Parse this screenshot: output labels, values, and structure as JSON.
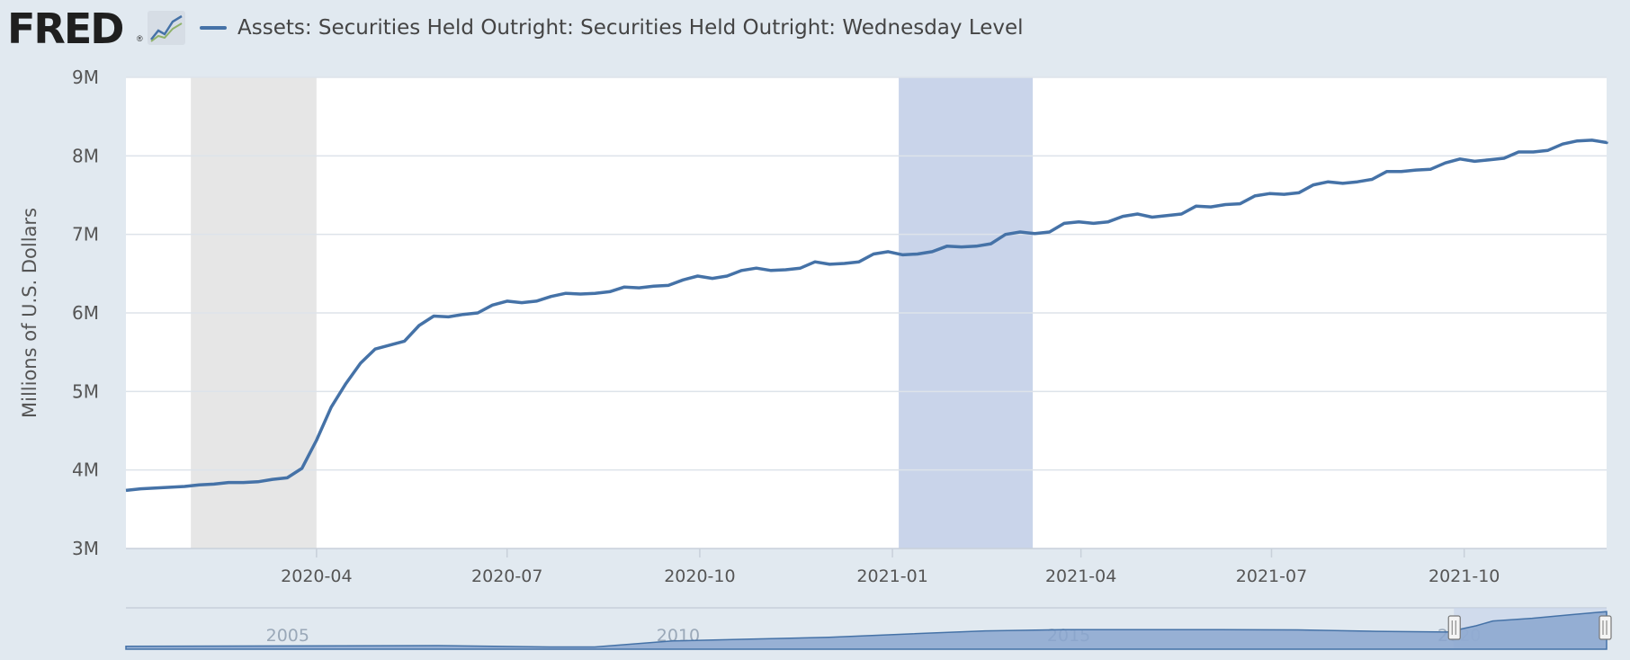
{
  "header": {
    "logo_text": "FRED",
    "logo_reg": "®"
  },
  "colors": {
    "series": "#4572a7",
    "recession_shade": "#e6e6e6",
    "highlight_shade": "#c9d4ea",
    "plot_bg": "#ffffff",
    "page_bg": "#e1e9f0",
    "grid": "#dde3ea",
    "navigator_fill": "#8aa6cf",
    "navigator_window": "#c9d4ea"
  },
  "icons": {
    "logo_graph": "fred-graph-icon",
    "handle": "navigator-handle-icon"
  },
  "chart_data": {
    "type": "line",
    "ylabel": "Millions of U.S. Dollars",
    "ylim": [
      3000000,
      9000000
    ],
    "y_ticks": [
      {
        "value": 3000000,
        "label": "3M"
      },
      {
        "value": 4000000,
        "label": "4M"
      },
      {
        "value": 5000000,
        "label": "5M"
      },
      {
        "value": 6000000,
        "label": "6M"
      },
      {
        "value": 7000000,
        "label": "7M"
      },
      {
        "value": 8000000,
        "label": "8M"
      },
      {
        "value": 9000000,
        "label": "9M"
      }
    ],
    "xlim": [
      "2020-01-01",
      "2021-12-08"
    ],
    "x_ticks": [
      {
        "date": "2020-04-01",
        "label": "2020-04"
      },
      {
        "date": "2020-07-01",
        "label": "2020-07"
      },
      {
        "date": "2020-10-01",
        "label": "2020-10"
      },
      {
        "date": "2021-01-01",
        "label": "2021-01"
      },
      {
        "date": "2021-04-01",
        "label": "2021-04"
      },
      {
        "date": "2021-07-01",
        "label": "2021-07"
      },
      {
        "date": "2021-10-01",
        "label": "2021-10"
      }
    ],
    "shaded_regions": [
      {
        "start": "2020-02-01",
        "end": "2020-04-01",
        "color": "#e6e6e6"
      },
      {
        "start": "2021-01-04",
        "end": "2021-03-09",
        "color": "#c9d4ea"
      }
    ],
    "grid": true,
    "legend_position": "top-left",
    "series": [
      {
        "name": "Assets: Securities Held Outright: Securities Held Outright: Wednesday Level",
        "color": "#4572a7",
        "points": [
          [
            "2020-01-01",
            3740000
          ],
          [
            "2020-01-08",
            3760000
          ],
          [
            "2020-01-15",
            3770000
          ],
          [
            "2020-01-22",
            3780000
          ],
          [
            "2020-01-29",
            3790000
          ],
          [
            "2020-02-05",
            3810000
          ],
          [
            "2020-02-12",
            3820000
          ],
          [
            "2020-02-19",
            3840000
          ],
          [
            "2020-02-26",
            3840000
          ],
          [
            "2020-03-04",
            3850000
          ],
          [
            "2020-03-11",
            3880000
          ],
          [
            "2020-03-18",
            3900000
          ],
          [
            "2020-03-25",
            4020000
          ],
          [
            "2020-04-01",
            4380000
          ],
          [
            "2020-04-08",
            4800000
          ],
          [
            "2020-04-15",
            5100000
          ],
          [
            "2020-04-22",
            5360000
          ],
          [
            "2020-04-29",
            5540000
          ],
          [
            "2020-05-06",
            5590000
          ],
          [
            "2020-05-13",
            5640000
          ],
          [
            "2020-05-20",
            5840000
          ],
          [
            "2020-05-27",
            5960000
          ],
          [
            "2020-06-03",
            5950000
          ],
          [
            "2020-06-10",
            5980000
          ],
          [
            "2020-06-17",
            6000000
          ],
          [
            "2020-06-24",
            6100000
          ],
          [
            "2020-07-01",
            6150000
          ],
          [
            "2020-07-08",
            6130000
          ],
          [
            "2020-07-15",
            6150000
          ],
          [
            "2020-07-22",
            6210000
          ],
          [
            "2020-07-29",
            6250000
          ],
          [
            "2020-08-05",
            6240000
          ],
          [
            "2020-08-12",
            6250000
          ],
          [
            "2020-08-19",
            6270000
          ],
          [
            "2020-08-26",
            6330000
          ],
          [
            "2020-09-02",
            6320000
          ],
          [
            "2020-09-09",
            6340000
          ],
          [
            "2020-09-16",
            6350000
          ],
          [
            "2020-09-23",
            6420000
          ],
          [
            "2020-09-30",
            6470000
          ],
          [
            "2020-10-07",
            6440000
          ],
          [
            "2020-10-14",
            6470000
          ],
          [
            "2020-10-21",
            6540000
          ],
          [
            "2020-10-28",
            6570000
          ],
          [
            "2020-11-04",
            6540000
          ],
          [
            "2020-11-11",
            6550000
          ],
          [
            "2020-11-18",
            6570000
          ],
          [
            "2020-11-25",
            6650000
          ],
          [
            "2020-12-02",
            6620000
          ],
          [
            "2020-12-09",
            6630000
          ],
          [
            "2020-12-16",
            6650000
          ],
          [
            "2020-12-23",
            6750000
          ],
          [
            "2020-12-30",
            6780000
          ],
          [
            "2021-01-06",
            6740000
          ],
          [
            "2021-01-13",
            6750000
          ],
          [
            "2021-01-20",
            6780000
          ],
          [
            "2021-01-27",
            6850000
          ],
          [
            "2021-02-03",
            6840000
          ],
          [
            "2021-02-10",
            6850000
          ],
          [
            "2021-02-17",
            6880000
          ],
          [
            "2021-02-24",
            7000000
          ],
          [
            "2021-03-03",
            7030000
          ],
          [
            "2021-03-10",
            7010000
          ],
          [
            "2021-03-17",
            7030000
          ],
          [
            "2021-03-24",
            7140000
          ],
          [
            "2021-03-31",
            7160000
          ],
          [
            "2021-04-07",
            7140000
          ],
          [
            "2021-04-14",
            7160000
          ],
          [
            "2021-04-21",
            7230000
          ],
          [
            "2021-04-28",
            7260000
          ],
          [
            "2021-05-05",
            7220000
          ],
          [
            "2021-05-12",
            7240000
          ],
          [
            "2021-05-19",
            7260000
          ],
          [
            "2021-05-26",
            7360000
          ],
          [
            "2021-06-02",
            7350000
          ],
          [
            "2021-06-09",
            7380000
          ],
          [
            "2021-06-16",
            7390000
          ],
          [
            "2021-06-23",
            7490000
          ],
          [
            "2021-06-30",
            7520000
          ],
          [
            "2021-07-07",
            7510000
          ],
          [
            "2021-07-14",
            7530000
          ],
          [
            "2021-07-21",
            7630000
          ],
          [
            "2021-07-28",
            7670000
          ],
          [
            "2021-08-04",
            7650000
          ],
          [
            "2021-08-11",
            7670000
          ],
          [
            "2021-08-18",
            7700000
          ],
          [
            "2021-08-25",
            7800000
          ],
          [
            "2021-09-01",
            7800000
          ],
          [
            "2021-09-08",
            7820000
          ],
          [
            "2021-09-15",
            7830000
          ],
          [
            "2021-09-22",
            7910000
          ],
          [
            "2021-09-29",
            7960000
          ],
          [
            "2021-10-06",
            7930000
          ],
          [
            "2021-10-13",
            7950000
          ],
          [
            "2021-10-20",
            7970000
          ],
          [
            "2021-10-27",
            8050000
          ],
          [
            "2021-11-03",
            8050000
          ],
          [
            "2021-11-10",
            8070000
          ],
          [
            "2021-11-17",
            8150000
          ],
          [
            "2021-11-24",
            8190000
          ],
          [
            "2021-12-01",
            8200000
          ],
          [
            "2021-12-08",
            8170000
          ],
          [
            "2021-12-15",
            8180000
          ]
        ]
      }
    ]
  },
  "navigator": {
    "xlim": [
      "2003-01-01",
      "2021-12-15"
    ],
    "ticks": [
      {
        "date": "2005-01-01",
        "label": "2005"
      },
      {
        "date": "2010-01-01",
        "label": "2010"
      },
      {
        "date": "2015-01-01",
        "label": "2015"
      },
      {
        "date": "2020-01-01",
        "label": "2020"
      }
    ],
    "window": [
      "2020-01-01",
      "2021-12-15"
    ],
    "ylim": [
      0,
      9000000
    ],
    "points": [
      [
        "2003-01-01",
        630000
      ],
      [
        "2005-01-01",
        700000
      ],
      [
        "2007-01-01",
        780000
      ],
      [
        "2008-06-01",
        480000
      ],
      [
        "2009-01-01",
        490000
      ],
      [
        "2010-01-01",
        1800000
      ],
      [
        "2011-01-01",
        2200000
      ],
      [
        "2012-01-01",
        2600000
      ],
      [
        "2013-01-01",
        3300000
      ],
      [
        "2014-01-01",
        4000000
      ],
      [
        "2015-01-01",
        4240000
      ],
      [
        "2017-01-01",
        4240000
      ],
      [
        "2018-01-01",
        4200000
      ],
      [
        "2019-01-01",
        3900000
      ],
      [
        "2019-12-01",
        3740000
      ],
      [
        "2020-04-15",
        5100000
      ],
      [
        "2020-07-01",
        6150000
      ],
      [
        "2021-01-01",
        6740000
      ],
      [
        "2021-07-01",
        7520000
      ],
      [
        "2021-12-15",
        8180000
      ]
    ]
  }
}
